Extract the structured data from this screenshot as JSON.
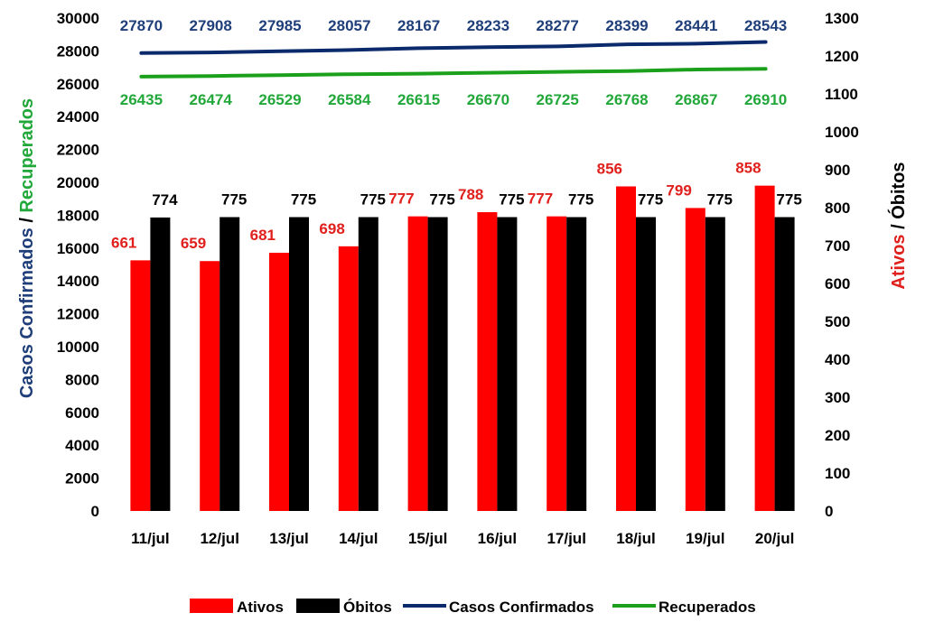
{
  "chart_data": {
    "type": "bar",
    "categories": [
      "11/jul",
      "12/jul",
      "13/jul",
      "14/jul",
      "15/jul",
      "16/jul",
      "17/jul",
      "18/jul",
      "19/jul",
      "20/jul"
    ],
    "series": [
      {
        "name": "Ativos",
        "type": "bar",
        "axis": "right",
        "color": "#ff0000",
        "label_color": "#e0201c",
        "values": [
          661,
          659,
          681,
          698,
          777,
          788,
          777,
          856,
          799,
          858
        ]
      },
      {
        "name": "Óbitos",
        "type": "bar",
        "axis": "right",
        "color": "#000000",
        "label_color": "#000000",
        "values": [
          774,
          775,
          775,
          775,
          775,
          775,
          775,
          775,
          775,
          775
        ]
      },
      {
        "name": "Casos Confirmados",
        "type": "line",
        "axis": "left",
        "color": "#0b2a6b",
        "label_color": "#1f3e7a",
        "values": [
          27870,
          27908,
          27985,
          28057,
          28167,
          28233,
          28277,
          28399,
          28441,
          28543
        ]
      },
      {
        "name": "Recuperados",
        "type": "line",
        "axis": "left",
        "color": "#1aa01a",
        "label_color": "#22a83a",
        "values": [
          26435,
          26474,
          26529,
          26584,
          26615,
          26670,
          26725,
          26768,
          26867,
          26910
        ]
      }
    ],
    "y_left": {
      "title_part1": "Casos Confirmados",
      "title_sep": " / ",
      "title_part2": "Recuperados",
      "ylim": [
        0,
        30000
      ],
      "ticks": [
        0,
        2000,
        4000,
        6000,
        8000,
        10000,
        12000,
        14000,
        16000,
        18000,
        20000,
        22000,
        24000,
        26000,
        28000,
        30000
      ]
    },
    "y_right": {
      "title_part1": "Ativos",
      "title_sep": " / ",
      "title_part2": "Óbitos",
      "ylim": [
        0,
        1300
      ],
      "ticks": [
        0,
        100,
        200,
        300,
        400,
        500,
        600,
        700,
        800,
        900,
        1000,
        1100,
        1200,
        1300
      ]
    },
    "legend_position": "bottom",
    "grid": false,
    "colors": {
      "left_title_1": "#1f3e7a",
      "left_title_2": "#22a83a",
      "right_title_1": "#e0201c",
      "right_title_2": "#000000"
    }
  }
}
